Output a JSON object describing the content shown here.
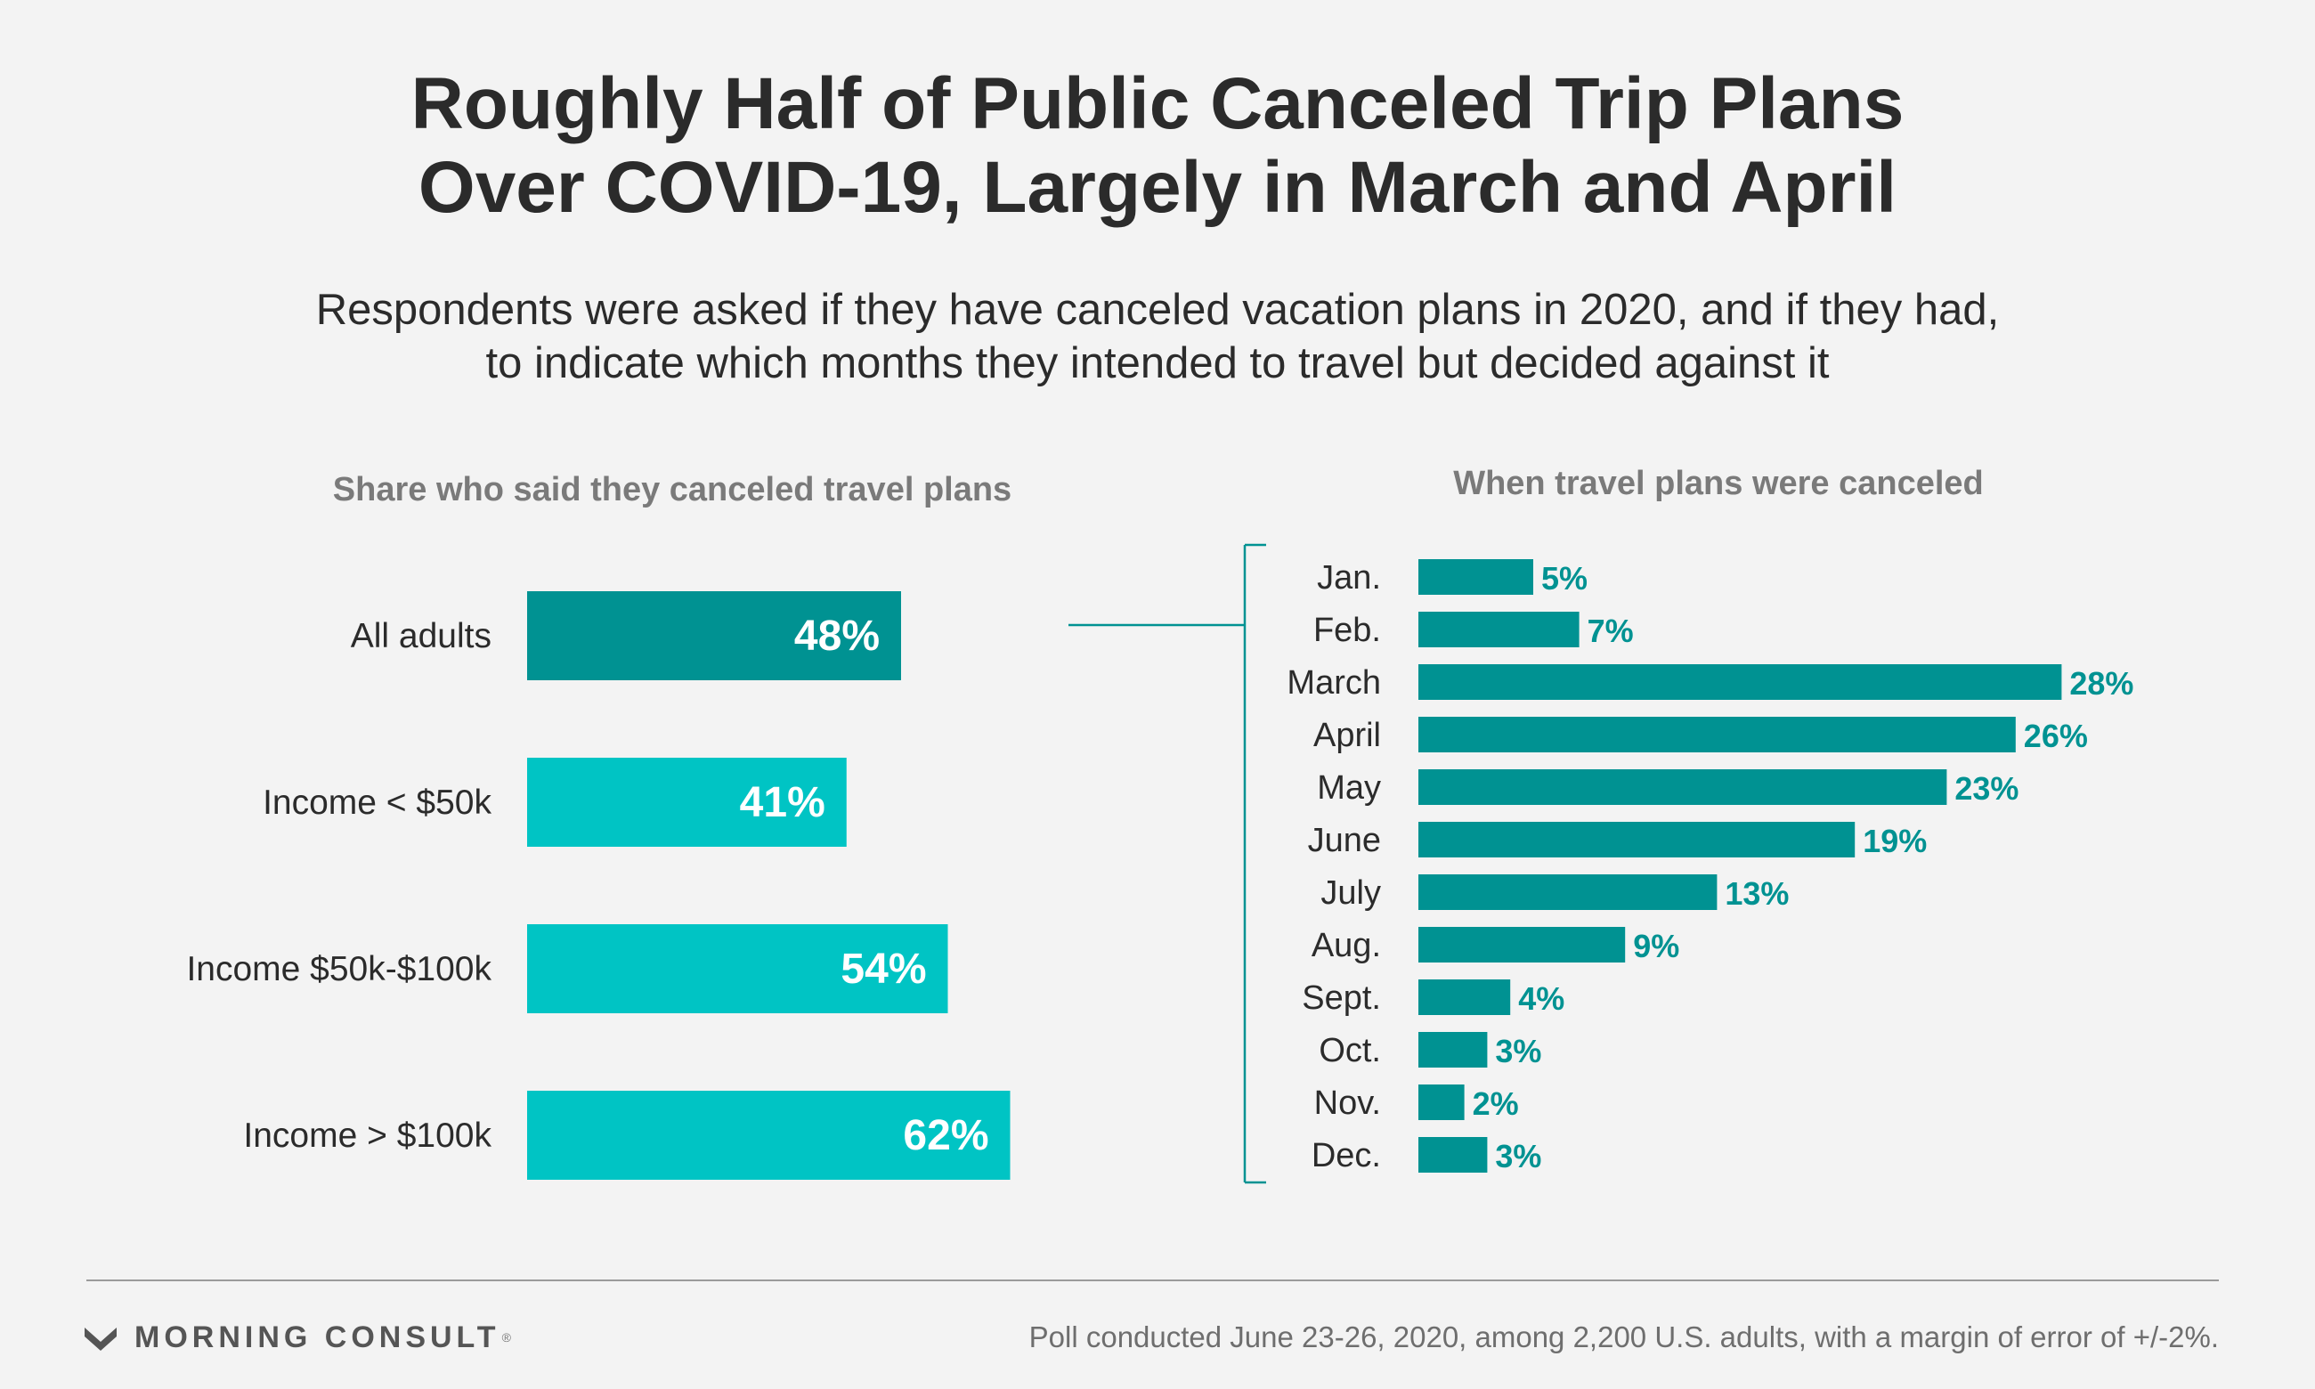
{
  "title_line1": "Roughly Half of Public Canceled Trip Plans",
  "title_line2": "Over COVID-19, Largely in March and April",
  "subtitle_line1": "Respondents were asked if they have canceled vacation plans in 2020, and if they had,",
  "subtitle_line2": "to indicate which months they intended to travel but decided against it",
  "brand": "MORNING CONSULT",
  "brand_mark": "®",
  "source": "Poll conducted June 23-26, 2020, among 2,200 U.S. adults, with a margin of error of +/-2%.",
  "colors": {
    "dark_teal": "#009292",
    "light_teal": "#00c4c4",
    "text": "#2b2b2b",
    "panel_title": "#7a7a7a"
  },
  "chart_data": [
    {
      "type": "bar",
      "title": "Share who said they canceled travel plans",
      "categories": [
        "All adults",
        "Income < $50k",
        "Income $50k-$100k",
        "Income > $100k"
      ],
      "values": [
        48,
        41,
        54,
        62
      ],
      "labels": [
        "48%",
        "41%",
        "54%",
        "62%"
      ],
      "highlight": "All adults",
      "xlim": [
        0,
        100
      ]
    },
    {
      "type": "bar",
      "title": "When travel plans were canceled",
      "categories": [
        "Jan.",
        "Feb.",
        "March",
        "April",
        "May",
        "June",
        "July",
        "Aug.",
        "Sept.",
        "Oct.",
        "Nov.",
        "Dec."
      ],
      "values": [
        5,
        7,
        28,
        26,
        23,
        19,
        13,
        9,
        4,
        3,
        2,
        3
      ],
      "labels": [
        "5%",
        "7%",
        "28%",
        "26%",
        "23%",
        "19%",
        "13%",
        "9%",
        "4%",
        "3%",
        "2%",
        "3%"
      ],
      "xlim": [
        0,
        30
      ]
    }
  ]
}
